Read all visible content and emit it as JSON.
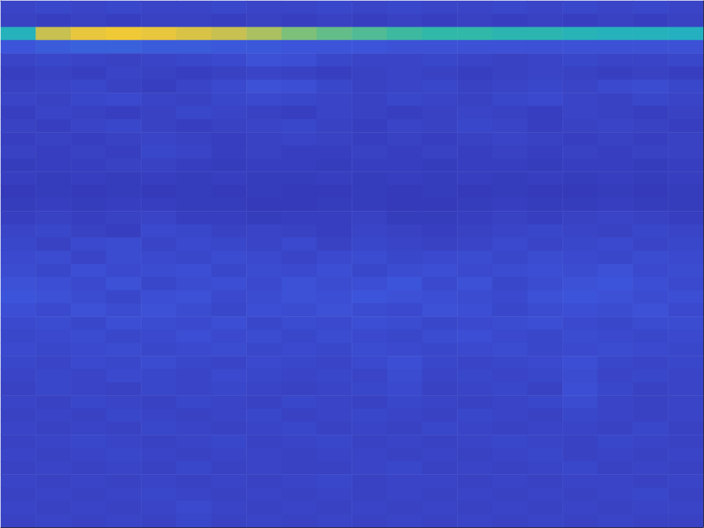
{
  "chart_data": {
    "type": "heatmap",
    "xlim": [
      0,
      9
    ],
    "xticks": [
      1,
      2,
      3,
      4,
      5,
      6,
      7,
      8
    ],
    "ylim": [
      0,
      4.8
    ],
    "yticks": [
      0.8,
      1.8,
      2.8,
      3.8
    ],
    "tick_labels": false,
    "zlim": [
      0,
      1
    ],
    "cells": [
      [
        0.07,
        0.08,
        0.07,
        0.08,
        0.07,
        0.07,
        0.08,
        0.07,
        0.07,
        0.08,
        0.07,
        0.08,
        0.07,
        0.07,
        0.08,
        0.07,
        0.08,
        0.07,
        0.08,
        0.07
      ],
      [
        0.06,
        0.05,
        0.06,
        0.05,
        0.06,
        0.06,
        0.05,
        0.06,
        0.05,
        0.06,
        0.05,
        0.06,
        0.05,
        0.06,
        0.05,
        0.06,
        0.05,
        0.06,
        0.05,
        0.06
      ],
      [
        0.45,
        0.75,
        0.85,
        0.88,
        0.85,
        0.8,
        0.75,
        0.7,
        0.62,
        0.58,
        0.55,
        0.52,
        0.5,
        0.5,
        0.48,
        0.48,
        0.46,
        0.45,
        0.45,
        0.44
      ],
      [
        0.13,
        0.15,
        0.16,
        0.16,
        0.15,
        0.15,
        0.14,
        0.14,
        0.13,
        0.13,
        0.13,
        0.12,
        0.12,
        0.12,
        0.12,
        0.12,
        0.12,
        0.12,
        0.12,
        0.12
      ],
      [
        0.07,
        0.08,
        0.07,
        0.06,
        0.07,
        0.08,
        0.09,
        0.12,
        0.11,
        0.08,
        0.07,
        0.07,
        0.08,
        0.07,
        0.06,
        0.07,
        0.08,
        0.07,
        0.07,
        0.08
      ],
      [
        0.05,
        0.06,
        0.05,
        0.07,
        0.06,
        0.05,
        0.06,
        0.07,
        0.06,
        0.05,
        0.06,
        0.07,
        0.06,
        0.05,
        0.06,
        0.07,
        0.06,
        0.05,
        0.06,
        0.05
      ],
      [
        0.06,
        0.07,
        0.08,
        0.06,
        0.05,
        0.07,
        0.09,
        0.12,
        0.11,
        0.08,
        0.06,
        0.07,
        0.08,
        0.06,
        0.07,
        0.08,
        0.07,
        0.09,
        0.1,
        0.08
      ],
      [
        0.07,
        0.06,
        0.08,
        0.09,
        0.07,
        0.06,
        0.08,
        0.09,
        0.08,
        0.07,
        0.06,
        0.08,
        0.07,
        0.06,
        0.08,
        0.09,
        0.07,
        0.06,
        0.08,
        0.07
      ],
      [
        0.05,
        0.07,
        0.06,
        0.05,
        0.06,
        0.08,
        0.07,
        0.06,
        0.05,
        0.07,
        0.06,
        0.05,
        0.06,
        0.07,
        0.06,
        0.05,
        0.07,
        0.06,
        0.05,
        0.06
      ],
      [
        0.06,
        0.05,
        0.07,
        0.08,
        0.06,
        0.05,
        0.06,
        0.07,
        0.08,
        0.06,
        0.05,
        0.07,
        0.06,
        0.08,
        0.07,
        0.05,
        0.06,
        0.07,
        0.06,
        0.05
      ],
      [
        0.05,
        0.06,
        0.05,
        0.06,
        0.07,
        0.06,
        0.05,
        0.06,
        0.07,
        0.06,
        0.05,
        0.06,
        0.05,
        0.06,
        0.07,
        0.06,
        0.05,
        0.06,
        0.05,
        0.06
      ],
      [
        0.06,
        0.05,
        0.06,
        0.05,
        0.08,
        0.07,
        0.05,
        0.06,
        0.05,
        0.05,
        0.06,
        0.05,
        0.06,
        0.05,
        0.06,
        0.05,
        0.06,
        0.05,
        0.06,
        0.06
      ],
      [
        0.04,
        0.05,
        0.05,
        0.06,
        0.06,
        0.05,
        0.04,
        0.05,
        0.05,
        0.04,
        0.05,
        0.05,
        0.04,
        0.05,
        0.05,
        0.04,
        0.05,
        0.05,
        0.04,
        0.05
      ],
      [
        0.05,
        0.04,
        0.05,
        0.04,
        0.05,
        0.04,
        0.05,
        0.04,
        0.04,
        0.05,
        0.04,
        0.05,
        0.04,
        0.05,
        0.04,
        0.05,
        0.04,
        0.05,
        0.04,
        0.05
      ],
      [
        0.03,
        0.04,
        0.03,
        0.04,
        0.03,
        0.04,
        0.03,
        0.04,
        0.03,
        0.03,
        0.04,
        0.03,
        0.04,
        0.03,
        0.04,
        0.03,
        0.03,
        0.04,
        0.03,
        0.04
      ],
      [
        0.04,
        0.05,
        0.04,
        0.05,
        0.05,
        0.04,
        0.04,
        0.03,
        0.03,
        0.04,
        0.04,
        0.03,
        0.03,
        0.04,
        0.05,
        0.04,
        0.04,
        0.05,
        0.04,
        0.04
      ],
      [
        0.05,
        0.06,
        0.05,
        0.06,
        0.07,
        0.05,
        0.05,
        0.04,
        0.05,
        0.05,
        0.06,
        0.04,
        0.04,
        0.05,
        0.06,
        0.05,
        0.06,
        0.07,
        0.06,
        0.05
      ],
      [
        0.07,
        0.08,
        0.06,
        0.05,
        0.09,
        0.08,
        0.06,
        0.07,
        0.06,
        0.05,
        0.07,
        0.06,
        0.05,
        0.06,
        0.07,
        0.08,
        0.07,
        0.06,
        0.08,
        0.07
      ],
      [
        0.08,
        0.06,
        0.09,
        0.1,
        0.07,
        0.09,
        0.08,
        0.07,
        0.09,
        0.06,
        0.08,
        0.07,
        0.06,
        0.07,
        0.09,
        0.07,
        0.08,
        0.09,
        0.07,
        0.08
      ],
      [
        0.09,
        0.1,
        0.07,
        0.1,
        0.09,
        0.08,
        0.1,
        0.09,
        0.07,
        0.09,
        0.1,
        0.08,
        0.09,
        0.1,
        0.08,
        0.1,
        0.09,
        0.08,
        0.1,
        0.09
      ],
      [
        0.1,
        0.08,
        0.11,
        0.09,
        0.1,
        0.11,
        0.08,
        0.1,
        0.09,
        0.11,
        0.08,
        0.1,
        0.11,
        0.09,
        0.1,
        0.11,
        0.1,
        0.12,
        0.09,
        0.1
      ],
      [
        0.12,
        0.11,
        0.09,
        0.12,
        0.08,
        0.1,
        0.11,
        0.09,
        0.12,
        0.1,
        0.11,
        0.13,
        0.09,
        0.12,
        0.08,
        0.1,
        0.12,
        0.13,
        0.11,
        0.09
      ],
      [
        0.13,
        0.12,
        0.1,
        0.08,
        0.11,
        0.12,
        0.09,
        0.1,
        0.12,
        0.11,
        0.13,
        0.12,
        0.11,
        0.1,
        0.09,
        0.12,
        0.13,
        0.12,
        0.1,
        0.11
      ],
      [
        0.11,
        0.09,
        0.12,
        0.1,
        0.12,
        0.1,
        0.08,
        0.11,
        0.1,
        0.12,
        0.1,
        0.09,
        0.12,
        0.11,
        0.08,
        0.1,
        0.11,
        0.1,
        0.12,
        0.09
      ],
      [
        0.09,
        0.1,
        0.08,
        0.11,
        0.1,
        0.09,
        0.11,
        0.08,
        0.1,
        0.09,
        0.11,
        0.1,
        0.08,
        0.09,
        0.1,
        0.11,
        0.09,
        0.08,
        0.1,
        0.1
      ],
      [
        0.08,
        0.09,
        0.1,
        0.08,
        0.09,
        0.11,
        0.09,
        0.1,
        0.08,
        0.1,
        0.09,
        0.08,
        0.1,
        0.11,
        0.09,
        0.08,
        0.1,
        0.09,
        0.08,
        0.09
      ],
      [
        0.09,
        0.08,
        0.09,
        0.1,
        0.08,
        0.09,
        0.1,
        0.08,
        0.09,
        0.08,
        0.1,
        0.09,
        0.08,
        0.09,
        0.1,
        0.08,
        0.09,
        0.1,
        0.09,
        0.08
      ],
      [
        0.08,
        0.07,
        0.09,
        0.08,
        0.1,
        0.08,
        0.07,
        0.09,
        0.08,
        0.07,
        0.09,
        0.11,
        0.08,
        0.07,
        0.08,
        0.09,
        0.11,
        0.08,
        0.07,
        0.08
      ],
      [
        0.07,
        0.08,
        0.07,
        0.09,
        0.08,
        0.07,
        0.09,
        0.08,
        0.07,
        0.08,
        0.07,
        0.1,
        0.07,
        0.08,
        0.07,
        0.08,
        0.1,
        0.07,
        0.08,
        0.07
      ],
      [
        0.06,
        0.08,
        0.07,
        0.06,
        0.08,
        0.07,
        0.08,
        0.07,
        0.06,
        0.07,
        0.08,
        0.09,
        0.06,
        0.07,
        0.08,
        0.06,
        0.11,
        0.08,
        0.06,
        0.07
      ],
      [
        0.07,
        0.06,
        0.08,
        0.07,
        0.06,
        0.08,
        0.07,
        0.06,
        0.08,
        0.07,
        0.06,
        0.08,
        0.07,
        0.06,
        0.07,
        0.08,
        0.1,
        0.07,
        0.06,
        0.07
      ],
      [
        0.06,
        0.07,
        0.06,
        0.08,
        0.07,
        0.06,
        0.07,
        0.08,
        0.06,
        0.07,
        0.08,
        0.07,
        0.06,
        0.08,
        0.07,
        0.06,
        0.08,
        0.07,
        0.06,
        0.07
      ],
      [
        0.07,
        0.06,
        0.07,
        0.06,
        0.08,
        0.07,
        0.06,
        0.07,
        0.08,
        0.06,
        0.07,
        0.06,
        0.08,
        0.07,
        0.06,
        0.07,
        0.07,
        0.06,
        0.08,
        0.06
      ],
      [
        0.06,
        0.07,
        0.08,
        0.07,
        0.06,
        0.07,
        0.08,
        0.06,
        0.07,
        0.08,
        0.06,
        0.07,
        0.06,
        0.07,
        0.08,
        0.07,
        0.06,
        0.08,
        0.07,
        0.06
      ],
      [
        0.07,
        0.06,
        0.07,
        0.08,
        0.07,
        0.06,
        0.07,
        0.07,
        0.06,
        0.07,
        0.07,
        0.06,
        0.07,
        0.06,
        0.07,
        0.08,
        0.06,
        0.07,
        0.06,
        0.07
      ],
      [
        0.06,
        0.07,
        0.06,
        0.07,
        0.06,
        0.08,
        0.06,
        0.07,
        0.06,
        0.06,
        0.07,
        0.08,
        0.06,
        0.07,
        0.06,
        0.07,
        0.08,
        0.06,
        0.07,
        0.06
      ],
      [
        0.07,
        0.06,
        0.07,
        0.06,
        0.07,
        0.06,
        0.07,
        0.06,
        0.07,
        0.08,
        0.06,
        0.07,
        0.07,
        0.06,
        0.07,
        0.06,
        0.07,
        0.07,
        0.06,
        0.07
      ],
      [
        0.06,
        0.07,
        0.06,
        0.07,
        0.08,
        0.07,
        0.06,
        0.07,
        0.06,
        0.07,
        0.06,
        0.07,
        0.06,
        0.07,
        0.06,
        0.07,
        0.06,
        0.07,
        0.08,
        0.06
      ],
      [
        0.07,
        0.06,
        0.07,
        0.06,
        0.07,
        0.09,
        0.07,
        0.06,
        0.07,
        0.06,
        0.07,
        0.06,
        0.07,
        0.06,
        0.07,
        0.06,
        0.07,
        0.06,
        0.07,
        0.07
      ],
      [
        0.06,
        0.07,
        0.06,
        0.07,
        0.06,
        0.08,
        0.06,
        0.07,
        0.06,
        0.07,
        0.06,
        0.07,
        0.06,
        0.07,
        0.06,
        0.07,
        0.06,
        0.07,
        0.06,
        0.06
      ]
    ]
  }
}
